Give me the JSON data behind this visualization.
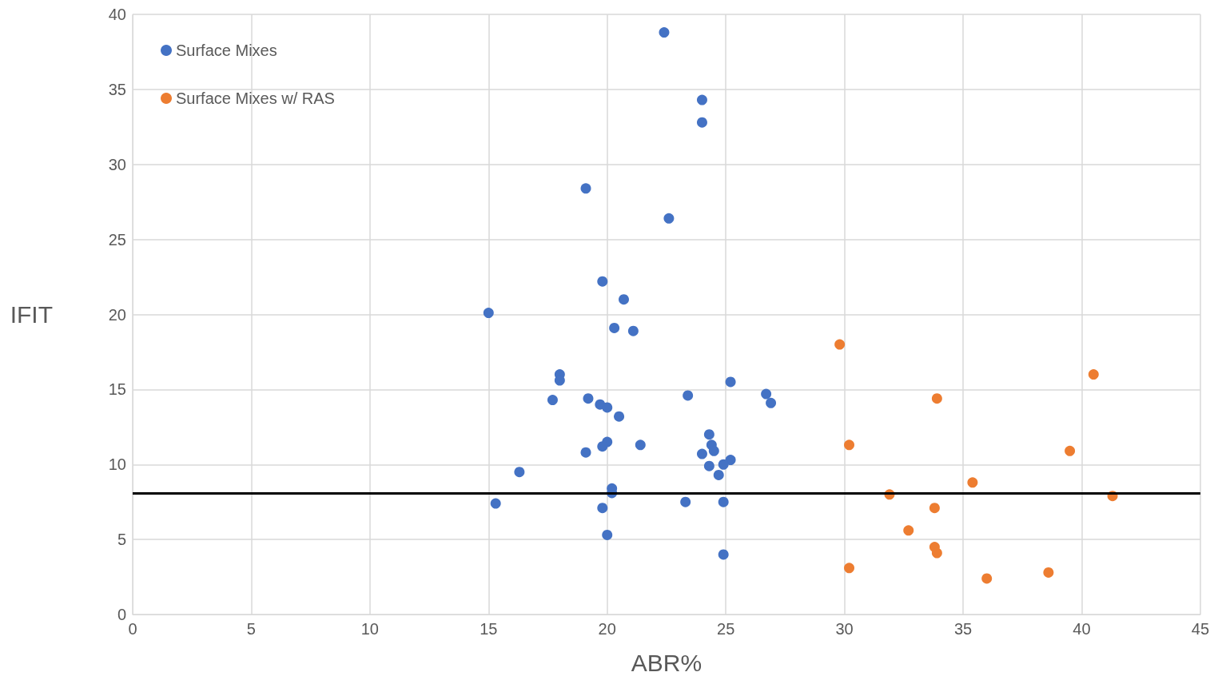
{
  "chart_data": {
    "type": "scatter",
    "xlabel": "ABR%",
    "ylabel": "IFIT",
    "xlim": [
      0,
      45
    ],
    "xticks": [
      0,
      5,
      10,
      15,
      20,
      25,
      30,
      35,
      40,
      45
    ],
    "ylim": [
      0,
      40
    ],
    "yticks": [
      0,
      5,
      10,
      15,
      20,
      25,
      30,
      35,
      40
    ],
    "grid": true,
    "legend": "top left",
    "marker": "circle",
    "ref_lines": [
      {
        "axis": "y",
        "value": 8.1,
        "color": "#000000",
        "line_style": "solid"
      }
    ],
    "series": [
      {
        "name": "Surface Mixes",
        "color": "#4472c4",
        "x": [
          22.4,
          24.0,
          24.0,
          19.1,
          22.6,
          19.8,
          20.7,
          15.0,
          20.3,
          21.1,
          18.0,
          18.0,
          25.2,
          26.7,
          26.9,
          23.4,
          17.7,
          19.2,
          19.7,
          20.0,
          20.5,
          24.3,
          24.4,
          24.5,
          20.0,
          19.8,
          21.4,
          19.1,
          24.0,
          25.2,
          24.9,
          24.3,
          24.7,
          16.3,
          20.2,
          20.2,
          15.3,
          23.3,
          24.9,
          19.8,
          20.0,
          24.9
        ],
        "values": [
          38.8,
          34.3,
          32.8,
          28.4,
          26.4,
          22.2,
          21.0,
          20.1,
          19.1,
          18.9,
          16.0,
          15.6,
          15.5,
          14.7,
          14.1,
          14.6,
          14.3,
          14.4,
          14.0,
          13.8,
          13.2,
          12.0,
          11.3,
          10.9,
          11.5,
          11.2,
          11.3,
          10.8,
          10.7,
          10.3,
          10.0,
          9.9,
          9.3,
          9.5,
          8.4,
          8.1,
          7.4,
          7.5,
          7.5,
          7.1,
          5.3,
          4.0
        ]
      },
      {
        "name": "Surface Mixes w/ RAS",
        "color": "#ed7d31",
        "x": [
          29.8,
          40.5,
          33.9,
          30.2,
          39.5,
          35.4,
          31.9,
          41.3,
          33.8,
          32.7,
          33.8,
          33.9,
          30.2,
          38.6,
          36.0
        ],
        "values": [
          18.0,
          16.0,
          14.4,
          11.3,
          10.9,
          8.8,
          8.0,
          7.9,
          7.1,
          5.6,
          4.5,
          4.1,
          3.1,
          2.8,
          2.4
        ]
      }
    ]
  }
}
